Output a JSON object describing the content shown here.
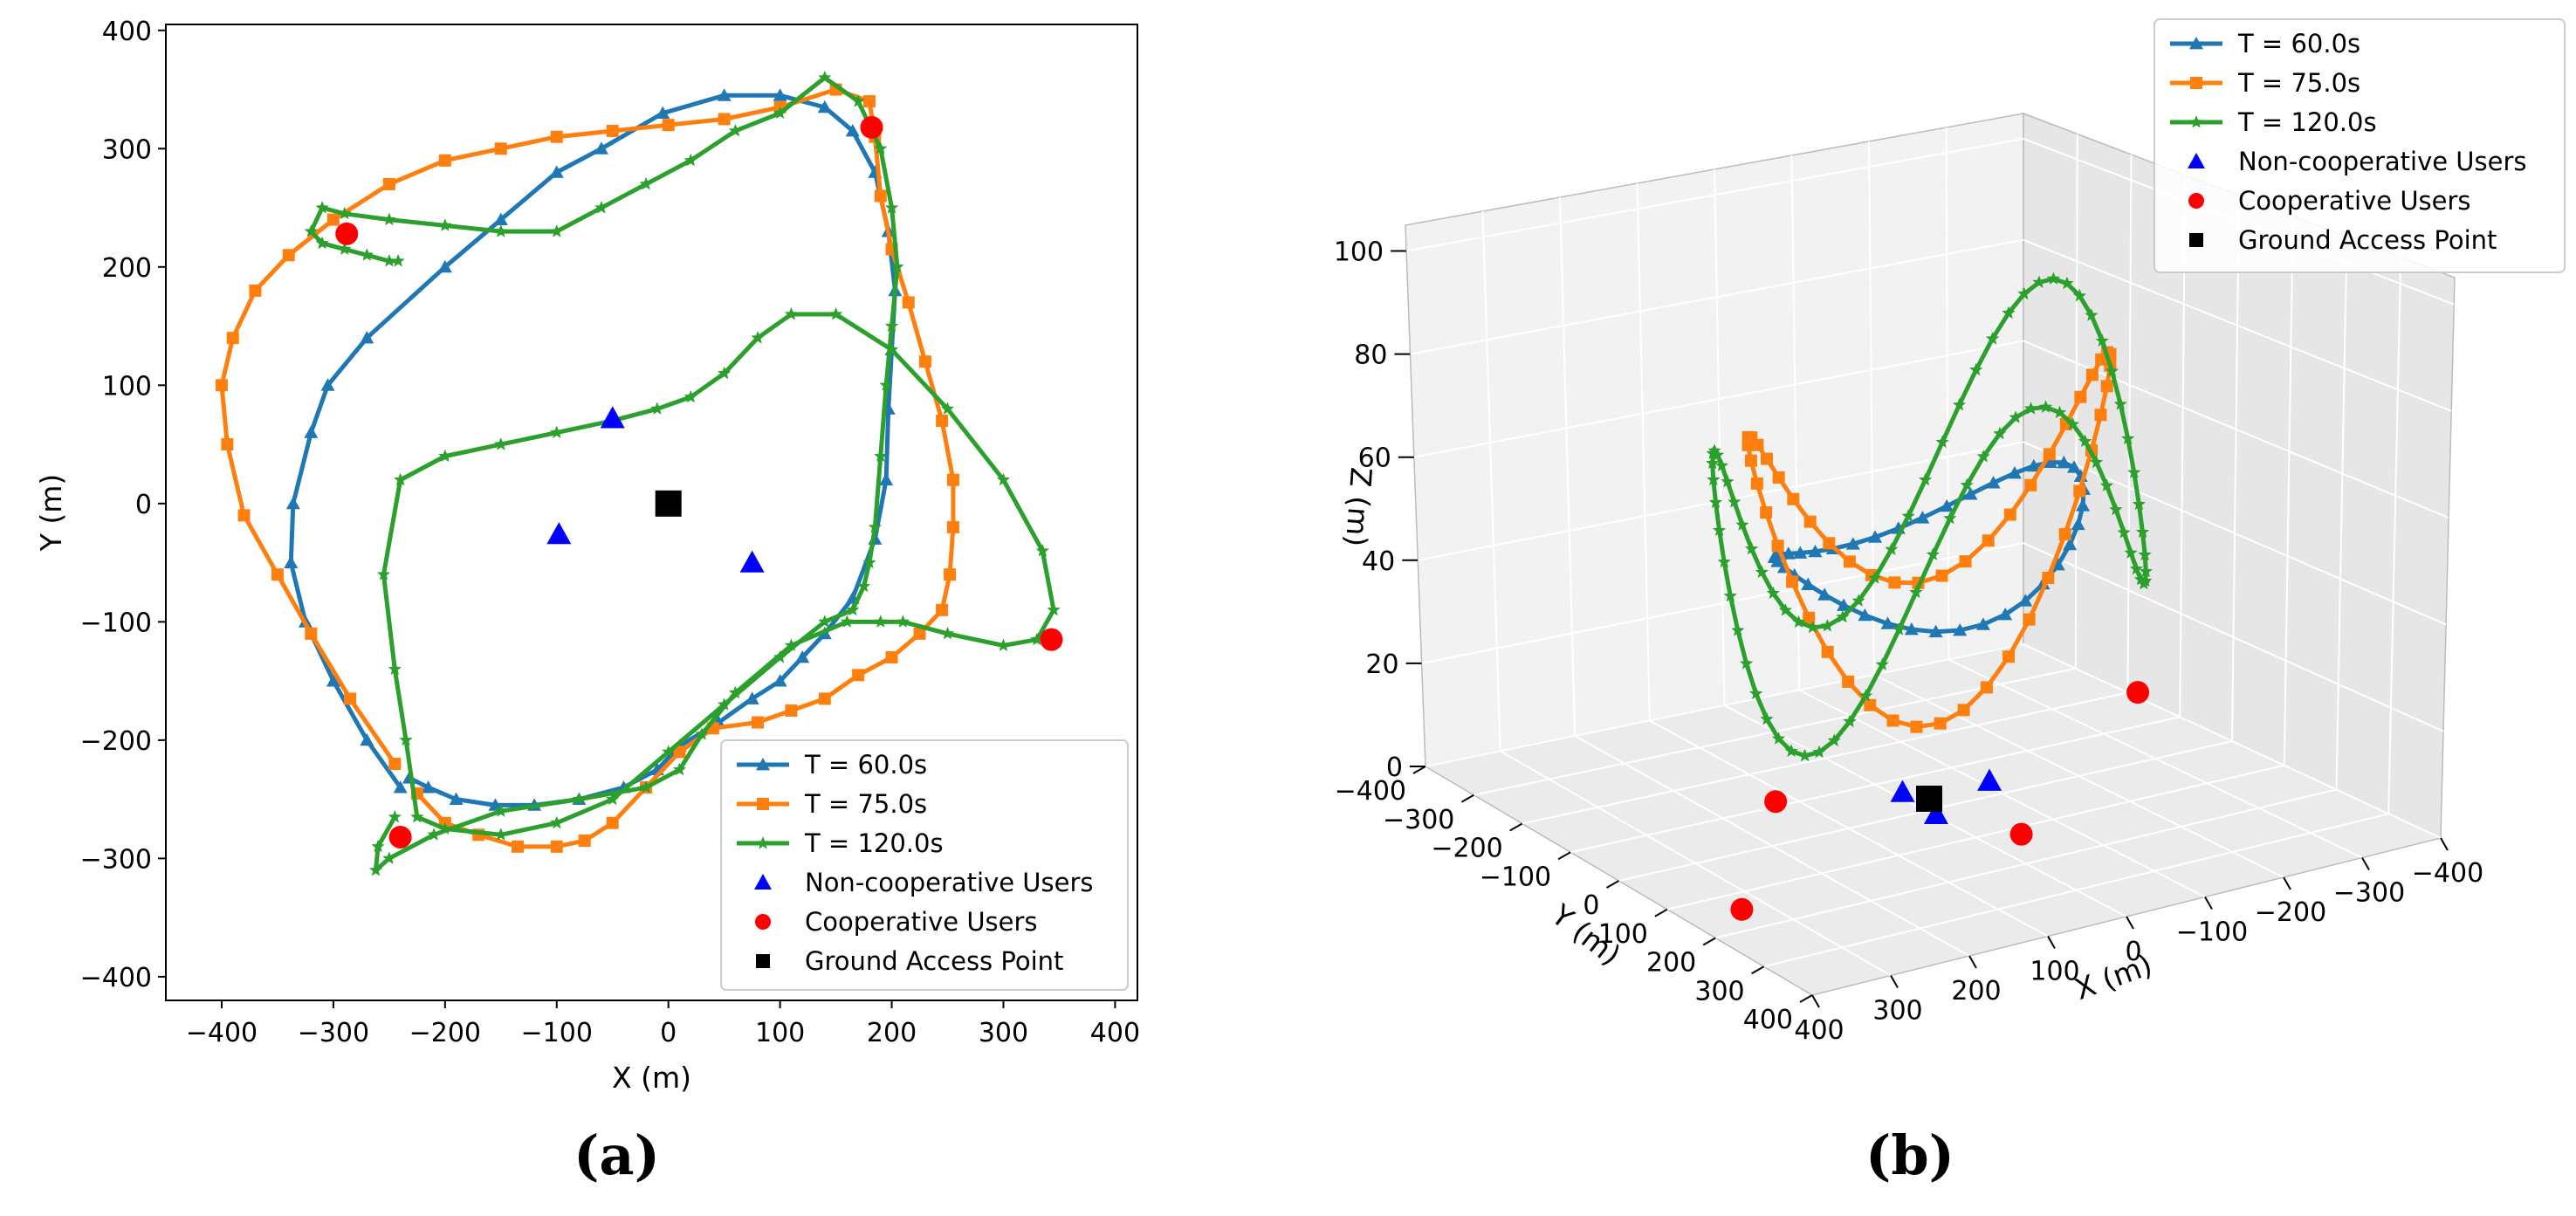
{
  "colors": {
    "t60": "#1f77b4",
    "t75": "#ff7f0e",
    "t120": "#2ca02c",
    "noncoop": "#0000ff",
    "coop": "#ff0000",
    "gap": "#000000"
  },
  "chart_data": [
    {
      "type": "line",
      "panel_label": "(a)",
      "xlabel": "X (m)",
      "ylabel": "Y (m)",
      "xlim": [
        -450,
        420
      ],
      "ylim": [
        -420,
        405
      ],
      "xticks": [
        -400,
        -300,
        -200,
        -100,
        0,
        100,
        200,
        300,
        400
      ],
      "yticks": [
        -400,
        -300,
        -200,
        -100,
        0,
        100,
        200,
        300,
        400
      ],
      "xtick_labels": [
        "−400",
        "−300",
        "−200",
        "−100",
        "0",
        "100",
        "200",
        "300",
        "400"
      ],
      "ytick_labels": [
        "−400",
        "−300",
        "−200",
        "−100",
        "0",
        "100",
        "200",
        "300",
        "400"
      ],
      "legend_position": "lower-right",
      "series": [
        {
          "name": "T = 60.0s",
          "color": "#1f77b4",
          "marker": "triangle",
          "x": [
            -240,
            -270,
            -300,
            -325,
            -338,
            -336,
            -320,
            -305,
            -270,
            -200,
            -150,
            -100,
            -60,
            -5,
            50,
            100,
            140,
            165,
            185,
            197,
            203,
            200,
            197,
            195,
            185,
            165,
            140,
            120,
            100,
            75,
            45,
            10,
            -10,
            -40,
            -80,
            -120,
            -155,
            -190,
            -215,
            -232
          ],
          "y": [
            -240,
            -200,
            -150,
            -100,
            -50,
            0,
            60,
            100,
            140,
            200,
            240,
            280,
            300,
            330,
            345,
            345,
            335,
            315,
            280,
            230,
            180,
            130,
            80,
            20,
            -30,
            -80,
            -110,
            -130,
            -150,
            -165,
            -185,
            -205,
            -225,
            -240,
            -250,
            -255,
            -255,
            -250,
            -240,
            -232
          ]
        },
        {
          "name": "T = 75.0s",
          "color": "#ff7f0e",
          "marker": "square",
          "x": [
            -245,
            -285,
            -320,
            -350,
            -380,
            -395,
            -400,
            -390,
            -370,
            -340,
            -300,
            -250,
            -200,
            -150,
            -100,
            -50,
            0,
            50,
            100,
            150,
            180,
            185,
            190,
            200,
            215,
            230,
            245,
            255,
            255,
            252,
            245,
            225,
            200,
            170,
            140,
            110,
            80,
            40,
            10,
            -20,
            -50,
            -75,
            -100,
            -135,
            -170,
            -200,
            -225
          ],
          "y": [
            -220,
            -165,
            -110,
            -60,
            -10,
            50,
            100,
            140,
            180,
            210,
            240,
            270,
            290,
            300,
            310,
            315,
            320,
            325,
            335,
            350,
            340,
            310,
            260,
            215,
            170,
            120,
            70,
            20,
            -20,
            -60,
            -90,
            -110,
            -130,
            -145,
            -165,
            -175,
            -185,
            -190,
            -210,
            -240,
            -270,
            -285,
            -290,
            -290,
            -280,
            -270,
            -245
          ]
        },
        {
          "name": "T = 120.0s",
          "color": "#2ca02c",
          "marker": "star",
          "x": [
            -245,
            -260,
            -262,
            -250,
            -210,
            -150,
            -80,
            -20,
            10,
            30,
            60,
            110,
            160,
            190,
            210,
            250,
            300,
            330,
            345,
            335,
            300,
            250,
            200,
            150,
            110,
            80,
            50,
            20,
            -10,
            -50,
            -100,
            -150,
            -200,
            -240,
            -255,
            -245,
            -235,
            -225,
            -200,
            -150,
            -100,
            -50,
            0,
            50,
            100,
            140,
            165,
            175,
            180,
            185,
            190,
            195,
            200,
            205,
            200,
            190,
            170,
            140,
            100,
            60,
            20,
            -20,
            -60,
            -100,
            -150,
            -200,
            -250,
            -290,
            -310,
            -320,
            -310,
            -290,
            -270,
            -250,
            -242
          ],
          "y": [
            -265,
            -290,
            -310,
            -300,
            -280,
            -260,
            -250,
            -240,
            -225,
            -195,
            -160,
            -120,
            -100,
            -100,
            -100,
            -110,
            -120,
            -115,
            -90,
            -40,
            20,
            80,
            130,
            160,
            160,
            140,
            110,
            90,
            80,
            70,
            60,
            50,
            40,
            20,
            -60,
            -140,
            -200,
            -265,
            -275,
            -280,
            -270,
            -250,
            -210,
            -170,
            -130,
            -100,
            -90,
            -70,
            -50,
            -20,
            40,
            100,
            150,
            200,
            250,
            300,
            340,
            360,
            330,
            315,
            290,
            270,
            250,
            230,
            230,
            235,
            240,
            245,
            250,
            230,
            220,
            215,
            210,
            205,
            205
          ]
        },
        {
          "name": "Non-cooperative Users",
          "color": "#0000ff",
          "marker": "bigtriangle",
          "x": [
            -50,
            -98,
            75
          ],
          "y": [
            72,
            -26,
            -50
          ]
        },
        {
          "name": "Cooperative Users",
          "color": "#ff0000",
          "marker": "circle",
          "x": [
            -288,
            182,
            -240,
            343
          ],
          "y": [
            228,
            318,
            -282,
            -115
          ]
        },
        {
          "name": "Ground Access Point",
          "color": "#000000",
          "marker": "bigsquare",
          "x": [
            0
          ],
          "y": [
            0
          ]
        }
      ]
    },
    {
      "type": "line",
      "panel_label": "(b)",
      "xlabel": "X (m)",
      "ylabel": "Y (m)",
      "zlabel": "Z (m)",
      "xticks": [
        -400,
        -300,
        -200,
        -100,
        0,
        100,
        200,
        300,
        400
      ],
      "yticks": [
        -400,
        -300,
        -200,
        -100,
        0,
        100,
        200,
        300,
        400
      ],
      "zticks": [
        0,
        20,
        40,
        60,
        80,
        100
      ],
      "xtick_labels": [
        "−400",
        "−300",
        "−200",
        "−100",
        "0",
        "100",
        "200",
        "300",
        "400"
      ],
      "ytick_labels": [
        "−400",
        "−300",
        "−200",
        "−100",
        "0",
        "100",
        "200",
        "300",
        "400"
      ],
      "ztick_labels": [
        "0",
        "20",
        "40",
        "60",
        "80",
        "100"
      ],
      "zlim": [
        0,
        105
      ],
      "legend_position": "top-right",
      "series": [
        {
          "name": "T = 60.0s",
          "color": "#1f77b4",
          "marker": "triangle"
        },
        {
          "name": "T = 75.0s",
          "color": "#ff7f0e",
          "marker": "square"
        },
        {
          "name": "T = 120.0s",
          "color": "#2ca02c",
          "marker": "star"
        },
        {
          "name": "Non-cooperative Users",
          "color": "#0000ff",
          "marker": "bigtriangle"
        },
        {
          "name": "Cooperative Users",
          "color": "#ff0000",
          "marker": "circle"
        },
        {
          "name": "Ground Access Point",
          "color": "#000000",
          "marker": "bigsquare"
        }
      ]
    }
  ]
}
